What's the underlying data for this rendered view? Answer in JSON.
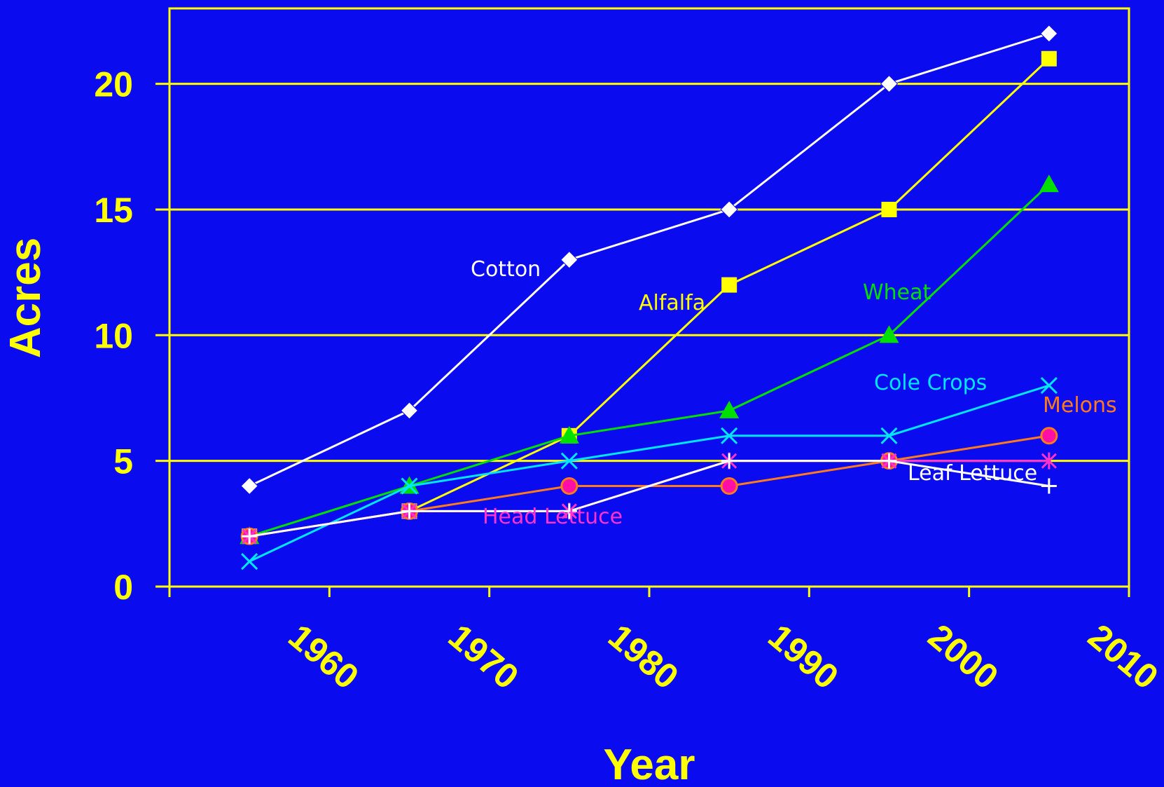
{
  "chart_data": {
    "type": "line",
    "title": "",
    "xlabel": "Year",
    "ylabel": "Acres",
    "xlim": [
      1950,
      2010
    ],
    "ylim": [
      0,
      23
    ],
    "x_ticks": [
      "1960",
      "1970",
      "1980",
      "1990",
      "2000",
      "2010"
    ],
    "y_ticks": [
      "0",
      "5",
      "10",
      "15",
      "20"
    ],
    "grid": true,
    "x": [
      1955,
      1965,
      1975,
      1985,
      1995,
      2005
    ],
    "colors": {
      "background": "#0B0BF0",
      "axis": "#FFFF00",
      "cotton": "#FFFFFF",
      "alfalfa": "#FFFF00",
      "wheat": "#00E000",
      "cole_crops": "#00E5FF",
      "melons": "#FF7A1A",
      "melons_fill": "#FF0FA8",
      "head_lettuce": "#FF33CC",
      "leaf_lettuce": "#FFFFFF"
    },
    "series": [
      {
        "name": "Cotton",
        "values": [
          4,
          7,
          13,
          15,
          20,
          22
        ],
        "color": "#FFFFFF",
        "marker": "diamond"
      },
      {
        "name": "Alfalfa",
        "values": [
          2,
          3,
          6,
          12,
          15,
          21
        ],
        "color": "#FFFF00",
        "marker": "square"
      },
      {
        "name": "Wheat",
        "values": [
          2,
          4,
          6,
          7,
          10,
          16
        ],
        "color": "#00E000",
        "marker": "triangle"
      },
      {
        "name": "Cole Crops",
        "values": [
          1,
          4,
          5,
          6,
          6,
          8
        ],
        "color": "#00E5FF",
        "marker": "x"
      },
      {
        "name": "Melons",
        "values": [
          2,
          3,
          4,
          4,
          5,
          6
        ],
        "color": "#FF7A1A",
        "marker": "circle"
      },
      {
        "name": "Head Lettuce",
        "values": [
          2,
          3,
          3,
          5,
          5,
          5
        ],
        "color": "#FF33CC",
        "marker": "star"
      },
      {
        "name": "Leaf Lettuce",
        "values": [
          2,
          3,
          3,
          5,
          5,
          4
        ],
        "color": "#FFFFFF",
        "marker": "plus"
      }
    ]
  }
}
